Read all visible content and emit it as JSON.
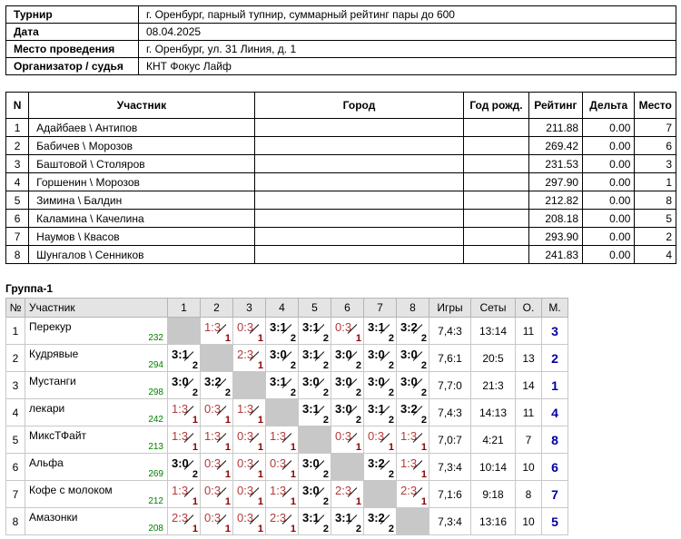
{
  "info": [
    {
      "key": "Турнир",
      "value": "г. Оренбург, парный тупнир, суммарный рейтинг пары до 600"
    },
    {
      "key": "Дата",
      "value": "08.04.2025"
    },
    {
      "key": "Место проведения",
      "value": "г. Оренбург, ул. 31 Линия, д. 1"
    },
    {
      "key": "Организатор / судья",
      "value": "КНТ Фокус Лайф"
    }
  ],
  "participants": {
    "headers": [
      "N",
      "Участник",
      "Город",
      "Год рожд.",
      "Рейтинг",
      "Дельта",
      "Место"
    ],
    "rows": [
      {
        "n": "1",
        "name": "Адайбаев \\ Антипов",
        "city": "",
        "year": "",
        "rating": "211.88",
        "delta": "0.00",
        "place": "7"
      },
      {
        "n": "2",
        "name": "Бабичев \\ Морозов",
        "city": "",
        "year": "",
        "rating": "269.42",
        "delta": "0.00",
        "place": "6"
      },
      {
        "n": "3",
        "name": "Баштовой \\ Столяров",
        "city": "",
        "year": "",
        "rating": "231.53",
        "delta": "0.00",
        "place": "3"
      },
      {
        "n": "4",
        "name": "Горшенин \\ Морозов",
        "city": "",
        "year": "",
        "rating": "297.90",
        "delta": "0.00",
        "place": "1"
      },
      {
        "n": "5",
        "name": "Зимина \\ Балдин",
        "city": "",
        "year": "",
        "rating": "212.82",
        "delta": "0.00",
        "place": "8"
      },
      {
        "n": "6",
        "name": "Каламина \\ Качелина",
        "city": "",
        "year": "",
        "rating": "208.18",
        "delta": "0.00",
        "place": "5"
      },
      {
        "n": "7",
        "name": "Наумов \\ Квасов",
        "city": "",
        "year": "",
        "rating": "293.90",
        "delta": "0.00",
        "place": "2"
      },
      {
        "n": "8",
        "name": "Шунгалов \\ Сенников",
        "city": "",
        "year": "",
        "rating": "241.83",
        "delta": "0.00",
        "place": "4"
      }
    ]
  },
  "group": {
    "title": "Группа-1",
    "headers": [
      "№",
      "Участник",
      "1",
      "2",
      "3",
      "4",
      "5",
      "6",
      "7",
      "8",
      "Игры",
      "Сеты",
      "О.",
      "М."
    ],
    "rows": [
      {
        "n": "1",
        "team": "Перекур",
        "rating": "232",
        "results": [
          null,
          "1:3",
          "0:3",
          "3:1",
          "3:1",
          "0:3",
          "3:1",
          "3:2"
        ],
        "points": [
          null,
          "1",
          "1",
          "2",
          "2",
          "1",
          "2",
          "2"
        ],
        "games": "7,4:3",
        "sets": "13:14",
        "score": "11",
        "place": "3"
      },
      {
        "n": "2",
        "team": "Кудрявые",
        "rating": "294",
        "results": [
          "3:1",
          null,
          "2:3",
          "3:0",
          "3:1",
          "3:0",
          "3:0",
          "3:0"
        ],
        "points": [
          "2",
          null,
          "1",
          "2",
          "2",
          "2",
          "2",
          "2"
        ],
        "games": "7,6:1",
        "sets": "20:5",
        "score": "13",
        "place": "2"
      },
      {
        "n": "3",
        "team": "Мустанги",
        "rating": "298",
        "results": [
          "3:0",
          "3:2",
          null,
          "3:1",
          "3:0",
          "3:0",
          "3:0",
          "3:0"
        ],
        "points": [
          "2",
          "2",
          null,
          "2",
          "2",
          "2",
          "2",
          "2"
        ],
        "games": "7,7:0",
        "sets": "21:3",
        "score": "14",
        "place": "1"
      },
      {
        "n": "4",
        "team": "лекари",
        "rating": "242",
        "results": [
          "1:3",
          "0:3",
          "1:3",
          null,
          "3:1",
          "3:0",
          "3:1",
          "3:2"
        ],
        "points": [
          "1",
          "1",
          "1",
          null,
          "2",
          "2",
          "2",
          "2"
        ],
        "games": "7,4:3",
        "sets": "14:13",
        "score": "11",
        "place": "4"
      },
      {
        "n": "5",
        "team": "МиксТФайт",
        "rating": "213",
        "results": [
          "1:3",
          "1:3",
          "0:3",
          "1:3",
          null,
          "0:3",
          "0:3",
          "1:3"
        ],
        "points": [
          "1",
          "1",
          "1",
          "1",
          null,
          "1",
          "1",
          "1"
        ],
        "games": "7,0:7",
        "sets": "4:21",
        "score": "7",
        "place": "8"
      },
      {
        "n": "6",
        "team": "Альфа",
        "rating": "269",
        "results": [
          "3:0",
          "0:3",
          "0:3",
          "0:3",
          "3:0",
          null,
          "3:2",
          "1:3"
        ],
        "points": [
          "2",
          "1",
          "1",
          "1",
          "2",
          null,
          "2",
          "1"
        ],
        "games": "7,3:4",
        "sets": "10:14",
        "score": "10",
        "place": "6"
      },
      {
        "n": "7",
        "team": "Кофе с молоком",
        "rating": "212",
        "results": [
          "1:3",
          "0:3",
          "0:3",
          "1:3",
          "3:0",
          "2:3",
          null,
          "2:3"
        ],
        "points": [
          "1",
          "1",
          "1",
          "1",
          "2",
          "1",
          null,
          "1"
        ],
        "games": "7,1:6",
        "sets": "9:18",
        "score": "8",
        "place": "7"
      },
      {
        "n": "8",
        "team": "Амазонки",
        "rating": "208",
        "results": [
          "2:3",
          "0:3",
          "0:3",
          "2:3",
          "3:1",
          "3:1",
          "3:2",
          null
        ],
        "points": [
          "1",
          "1",
          "1",
          "1",
          "2",
          "2",
          "2",
          null
        ],
        "games": "7,3:4",
        "sets": "13:16",
        "score": "10",
        "place": "5"
      }
    ]
  }
}
